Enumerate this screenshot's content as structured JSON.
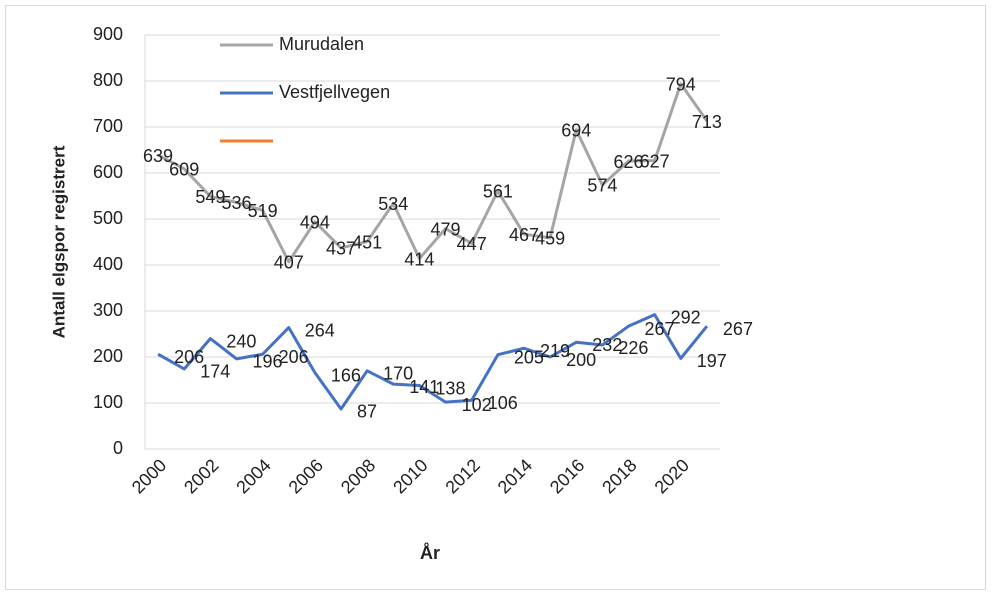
{
  "chart_data": {
    "type": "line",
    "x_label": "År",
    "y_label": "Antall elgspor registrert",
    "categories": [
      "2000",
      null,
      "2002",
      null,
      "2004",
      null,
      "2006",
      null,
      "2008",
      null,
      "2010",
      null,
      "2012",
      null,
      "2014",
      null,
      "2016",
      null,
      "2018",
      null,
      "2020",
      null
    ],
    "series": [
      {
        "name": "Murudalen",
        "color": "#a5a5a5",
        "values": [
          639,
          609,
          549,
          536,
          519,
          407,
          494,
          437,
          451,
          534,
          414,
          479,
          447,
          561,
          467,
          459,
          694,
          574,
          626,
          627,
          794,
          713
        ]
      },
      {
        "name": "Vestfjellvegen",
        "color": "#4472c4",
        "values": [
          206,
          174,
          240,
          196,
          206,
          264,
          166,
          87,
          170,
          141,
          138,
          102,
          106,
          205,
          219,
          200,
          232,
          226,
          267,
          292,
          197,
          267
        ]
      }
    ],
    "ylim": [
      0,
      900
    ],
    "yticks": [
      0,
      100,
      200,
      300,
      400,
      500,
      600,
      700,
      800,
      900
    ],
    "grid": true
  }
}
